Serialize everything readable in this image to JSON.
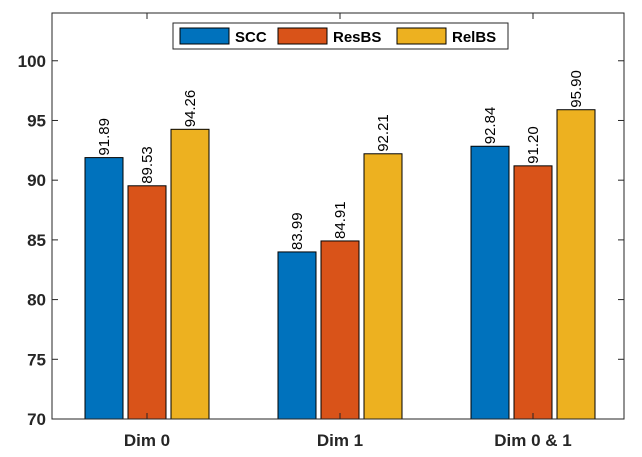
{
  "chart_data": {
    "type": "bar",
    "title": "",
    "xlabel": "",
    "ylabel": "",
    "ylim": [
      70,
      104
    ],
    "yticks": [
      70,
      75,
      80,
      85,
      90,
      95,
      100
    ],
    "ytick_labels": [
      "70",
      "75",
      "80",
      "85",
      "90",
      "95",
      "100"
    ],
    "categories": [
      "Dim 0",
      "Dim 1",
      "Dim 0 & 1"
    ],
    "series": [
      {
        "name": "SCC",
        "color": "#0072BD",
        "values": [
          91.89,
          83.99,
          92.84
        ],
        "labels": [
          "91.89",
          "83.99",
          "92.84"
        ]
      },
      {
        "name": "ResBS",
        "color": "#D95319",
        "values": [
          89.53,
          84.91,
          91.2
        ],
        "labels": [
          "89.53",
          "84.91",
          "91.20"
        ]
      },
      {
        "name": "RelBS",
        "color": "#EDB120",
        "values": [
          94.26,
          92.21,
          95.9
        ],
        "labels": [
          "94.26",
          "92.21",
          "95.90"
        ]
      }
    ],
    "legend_position": "top-center",
    "grid": false
  }
}
